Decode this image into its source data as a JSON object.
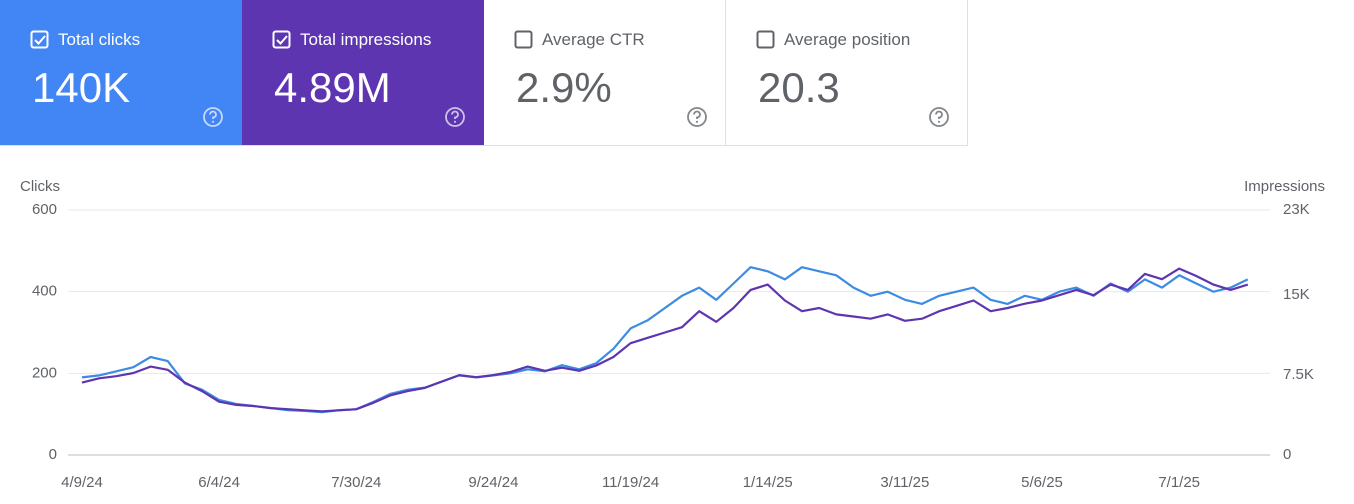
{
  "cards": [
    {
      "label": "Total clicks",
      "value": "140K",
      "checked": true,
      "background": "#4285f4",
      "text_color": "#ffffff"
    },
    {
      "label": "Total impressions",
      "value": "4.89M",
      "checked": true,
      "background": "#5e35b1",
      "text_color": "#ffffff"
    },
    {
      "label": "Average CTR",
      "value": "2.9%",
      "checked": false,
      "background": "#ffffff",
      "text_color": "#5f6368"
    },
    {
      "label": "Average position",
      "value": "20.3",
      "checked": false,
      "background": "#ffffff",
      "text_color": "#5f6368"
    }
  ],
  "chart_data": {
    "type": "line",
    "y_label": "Clicks",
    "y2_label": "Impressions",
    "x": [
      "4/9/24",
      "4/16/24",
      "4/23/24",
      "4/30/24",
      "5/7/24",
      "5/14/24",
      "5/21/24",
      "5/28/24",
      "6/4/24",
      "6/11/24",
      "6/18/24",
      "6/25/24",
      "7/2/24",
      "7/9/24",
      "7/16/24",
      "7/23/24",
      "7/30/24",
      "8/6/24",
      "8/13/24",
      "8/20/24",
      "8/27/24",
      "9/3/24",
      "9/10/24",
      "9/17/24",
      "9/24/24",
      "10/1/24",
      "10/8/24",
      "10/15/24",
      "10/22/24",
      "10/29/24",
      "11/5/24",
      "11/12/24",
      "11/19/24",
      "11/26/24",
      "12/3/24",
      "12/10/24",
      "12/17/24",
      "12/24/24",
      "12/31/24",
      "1/7/25",
      "1/14/25",
      "1/21/25",
      "1/28/25",
      "2/4/25",
      "2/11/25",
      "2/18/25",
      "2/25/25",
      "3/4/25",
      "3/11/25",
      "3/18/25",
      "3/25/25",
      "4/1/25",
      "4/8/25",
      "4/15/25",
      "4/22/25",
      "4/29/25",
      "5/6/25",
      "5/13/25",
      "5/20/25",
      "5/27/25",
      "6/3/25",
      "6/10/25",
      "6/17/25",
      "6/24/25",
      "7/1/25",
      "7/8/25",
      "7/15/25",
      "7/22/25",
      "7/29/25"
    ],
    "series": [
      {
        "name": "Clicks",
        "color": "#3d8be3",
        "axis": "y",
        "values": [
          190,
          195,
          205,
          215,
          240,
          230,
          175,
          160,
          135,
          125,
          120,
          115,
          110,
          108,
          105,
          110,
          112,
          130,
          150,
          160,
          165,
          180,
          195,
          190,
          195,
          200,
          210,
          205,
          220,
          210,
          225,
          260,
          310,
          330,
          360,
          390,
          410,
          380,
          420,
          460,
          450,
          430,
          460,
          450,
          440,
          410,
          390,
          400,
          380,
          370,
          390,
          400,
          410,
          380,
          370,
          390,
          380,
          400,
          410,
          390,
          420,
          400,
          430,
          410,
          440,
          420,
          400,
          410,
          430
        ]
      },
      {
        "name": "Impressions",
        "color": "#5e35b1",
        "axis": "y2",
        "values": [
          6800,
          7200,
          7400,
          7700,
          8300,
          8000,
          6800,
          6000,
          5000,
          4700,
          4600,
          4400,
          4300,
          4200,
          4100,
          4200,
          4300,
          4900,
          5600,
          6000,
          6300,
          6900,
          7500,
          7300,
          7500,
          7800,
          8300,
          7900,
          8200,
          7900,
          8400,
          9200,
          10500,
          11000,
          11500,
          12000,
          13500,
          12500,
          13800,
          15500,
          16000,
          14500,
          13500,
          13800,
          13200,
          13000,
          12800,
          13200,
          12600,
          12800,
          13500,
          14000,
          14500,
          13500,
          13800,
          14200,
          14500,
          15000,
          15500,
          15000,
          16000,
          15500,
          17000,
          16500,
          17500,
          16800,
          16000,
          15500,
          16000
        ]
      }
    ],
    "xlim": [
      "4/9/24",
      "8/3/25"
    ],
    "xticks": [
      "4/9/24",
      "6/4/24",
      "7/30/24",
      "9/24/24",
      "11/19/24",
      "1/14/25",
      "3/11/25",
      "5/6/25",
      "7/1/25"
    ],
    "ylim": [
      0,
      600
    ],
    "yticks": [
      0,
      200,
      400,
      600
    ],
    "y2lim": [
      0,
      23000
    ],
    "y2ticks": [
      0,
      {
        "value": 7500,
        "label": "7.5K"
      },
      {
        "value": 15000,
        "label": "15K"
      },
      {
        "value": 23000,
        "label": "23K"
      }
    ],
    "grid": true
  }
}
